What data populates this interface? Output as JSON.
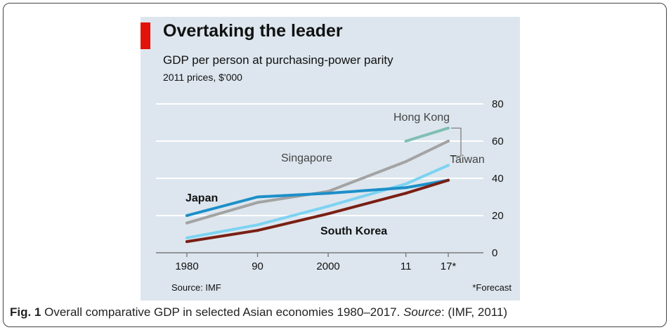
{
  "chart_data": {
    "type": "line",
    "title": "Overtaking the leader",
    "subtitle": "GDP per person at purchasing-power parity",
    "unit_label": "2011 prices, $'000",
    "x": [
      1980,
      1990,
      2000,
      2011,
      2017
    ],
    "x_tick_labels": [
      "1980",
      "90",
      "2000",
      "11",
      "17*"
    ],
    "ylim": [
      0,
      80
    ],
    "y_ticks": [
      0,
      20,
      40,
      60,
      80
    ],
    "grid": true,
    "series": [
      {
        "name": "Hong Kong",
        "color": "#7fbfb4",
        "values": [
          null,
          null,
          null,
          60,
          67
        ]
      },
      {
        "name": "Singapore",
        "color": "#a3a3a3",
        "values": [
          16,
          27,
          33,
          49,
          60
        ]
      },
      {
        "name": "Taiwan",
        "color": "#7dd3f2",
        "values": [
          8,
          15,
          25,
          37,
          47
        ]
      },
      {
        "name": "Japan",
        "color": "#1c8fc9",
        "values": [
          20,
          30,
          32,
          35,
          39
        ]
      },
      {
        "name": "South Korea",
        "color": "#7a1f14",
        "values": [
          6,
          12,
          21,
          32,
          39
        ]
      }
    ],
    "source": "Source: IMF",
    "footnote": "*Forecast"
  },
  "caption": {
    "label": "Fig. 1",
    "text": " Overall comparative GDP in selected Asian economies 1980–2017. ",
    "source_word": "Source",
    "source_ref": ": (IMF, 2011)"
  }
}
